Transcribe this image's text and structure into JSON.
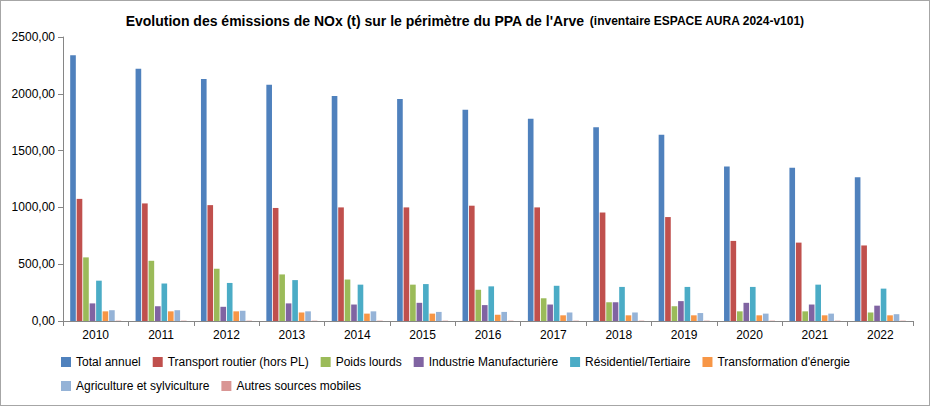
{
  "chart_data": {
    "type": "bar",
    "title": "Evolution des émissions de NOx (t) sur le périmètre du PPA de l'Arve",
    "subtitle": "(inventaire ESPACE AURA 2024-v101)",
    "categories": [
      "2010",
      "2011",
      "2012",
      "2013",
      "2014",
      "2015",
      "2016",
      "2017",
      "2018",
      "2019",
      "2020",
      "2021",
      "2022"
    ],
    "series": [
      {
        "name": "Total annuel",
        "color": "#4f81bd",
        "values": [
          2340,
          2220,
          2130,
          2080,
          1980,
          1955,
          1860,
          1780,
          1705,
          1640,
          1360,
          1350,
          1265
        ]
      },
      {
        "name": "Transport routier (hors PL)",
        "color": "#c0504d",
        "values": [
          1075,
          1035,
          1020,
          995,
          1000,
          1000,
          1015,
          1000,
          955,
          915,
          705,
          690,
          665
        ]
      },
      {
        "name": "Poids lourds",
        "color": "#9bbb59",
        "values": [
          560,
          530,
          460,
          410,
          365,
          320,
          275,
          200,
          165,
          130,
          85,
          85,
          75
        ]
      },
      {
        "name": "Industrie Manufacturière",
        "color": "#8064a2",
        "values": [
          155,
          130,
          125,
          155,
          145,
          160,
          140,
          145,
          165,
          175,
          160,
          145,
          135
        ]
      },
      {
        "name": "Résidentiel/Tertiaire",
        "color": "#4bacc6",
        "values": [
          355,
          330,
          335,
          360,
          320,
          325,
          305,
          310,
          300,
          300,
          300,
          320,
          285
        ]
      },
      {
        "name": "Transformation d'énergie",
        "color": "#f79646",
        "values": [
          85,
          85,
          85,
          75,
          65,
          65,
          55,
          50,
          50,
          50,
          50,
          50,
          50
        ]
      },
      {
        "name": "Agriculture et sylviculture",
        "color": "#95b3d7",
        "values": [
          95,
          95,
          90,
          85,
          85,
          80,
          80,
          75,
          75,
          70,
          65,
          65,
          60
        ]
      },
      {
        "name": "Autres sources mobiles",
        "color": "#d99694",
        "values": [
          3,
          3,
          3,
          3,
          3,
          3,
          3,
          3,
          3,
          3,
          3,
          3,
          3
        ]
      }
    ],
    "ylim": [
      0,
      2500
    ],
    "yticks": [
      {
        "value": 0,
        "label": "0,00"
      },
      {
        "value": 500,
        "label": "500,00"
      },
      {
        "value": 1000,
        "label": "1000,00"
      },
      {
        "value": 1500,
        "label": "1500,00"
      },
      {
        "value": 2000,
        "label": "2000,00"
      },
      {
        "value": 2500,
        "label": "2500,00"
      }
    ],
    "grid": false,
    "legend": "bottom"
  }
}
